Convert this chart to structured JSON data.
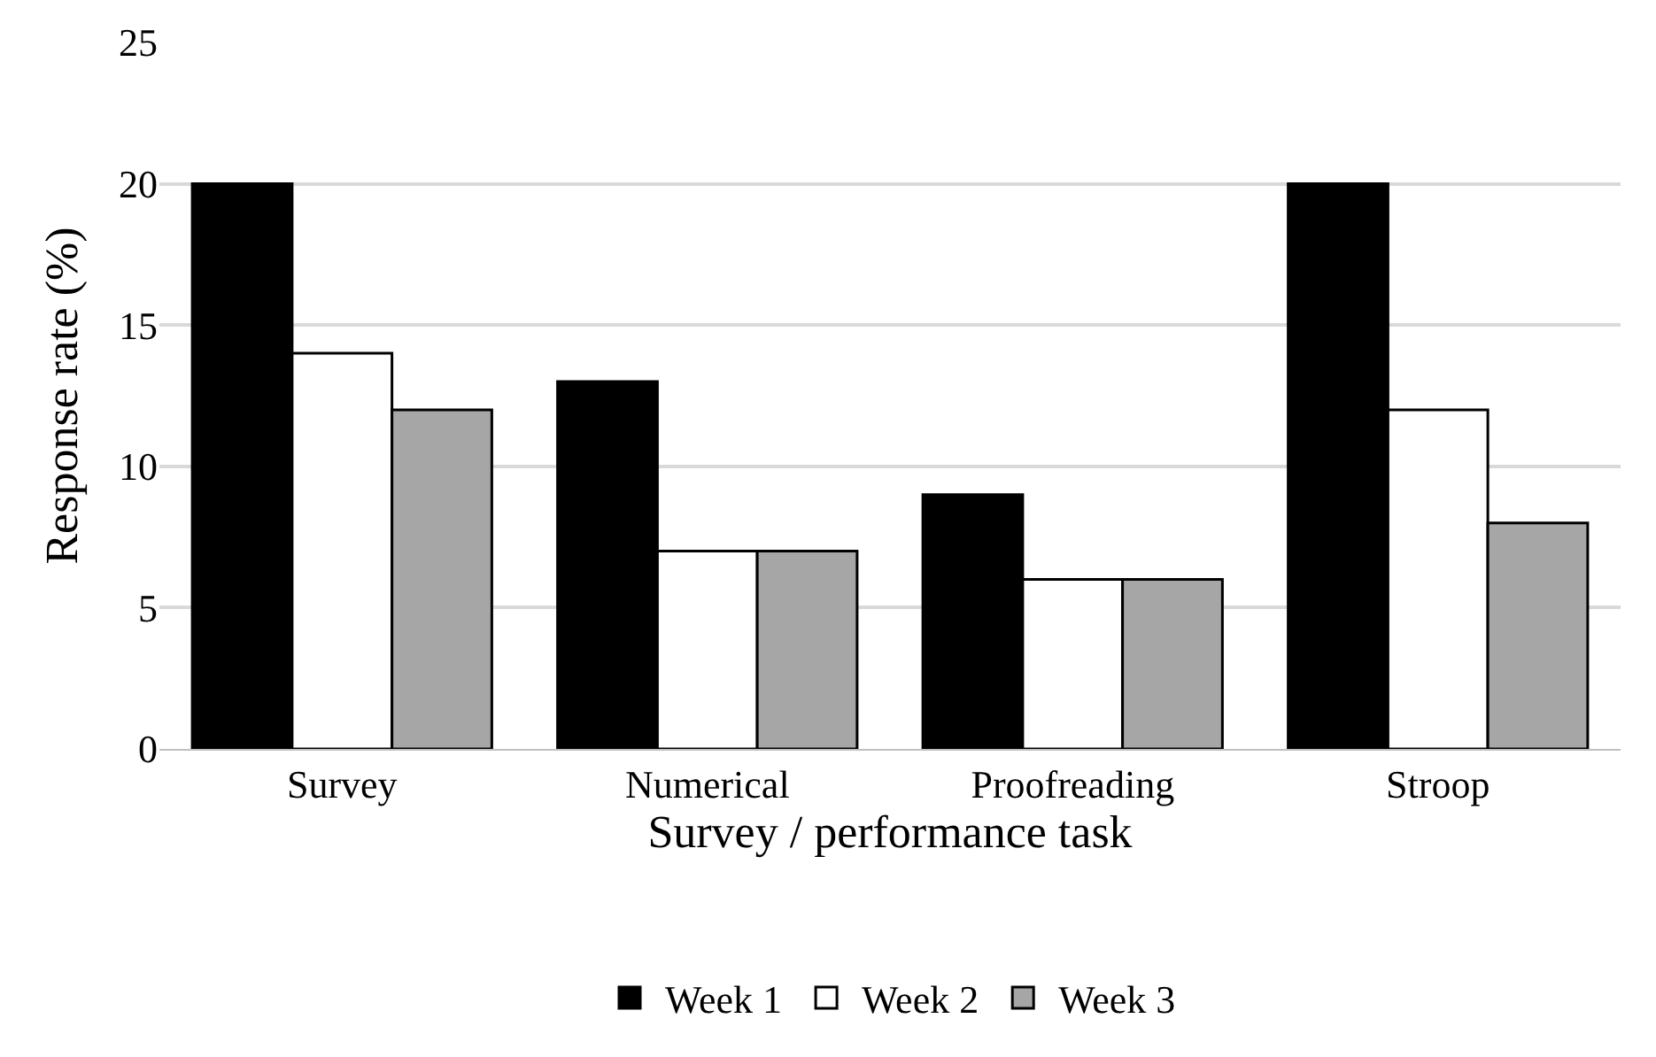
{
  "chart_data": {
    "type": "bar",
    "xlabel": "Survey / performance task",
    "ylabel": "Response rate (%)",
    "categories": [
      "Survey",
      "Numerical",
      "Proofreading",
      "Stroop"
    ],
    "series": [
      {
        "name": "Week 1",
        "color": "#000000",
        "values": [
          20,
          13,
          9,
          20
        ]
      },
      {
        "name": "Week 2",
        "color": "#ffffff",
        "values": [
          14,
          7,
          6,
          12
        ]
      },
      {
        "name": "Week 3",
        "color": "#a6a6a6",
        "values": [
          12,
          7,
          6,
          8
        ]
      }
    ],
    "ylim": [
      0,
      25
    ],
    "yticks": [
      0,
      5,
      10,
      15,
      20,
      25
    ],
    "grid": "y",
    "legend": "bottom"
  }
}
